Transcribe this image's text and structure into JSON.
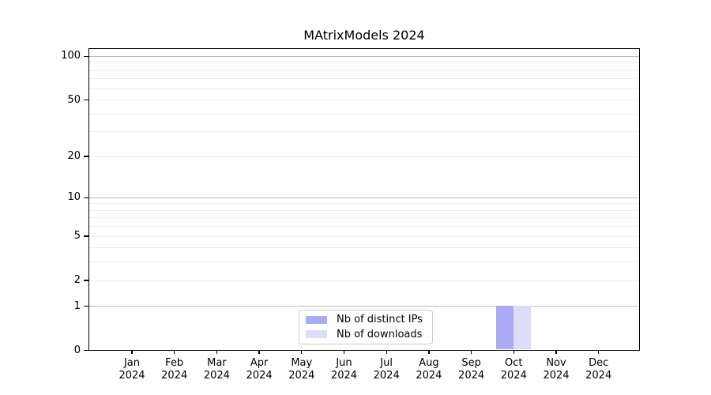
{
  "chart_data": {
    "type": "bar",
    "title": "MAtrixModels 2024",
    "x_tick_months": [
      "Jan",
      "Feb",
      "Mar",
      "Apr",
      "May",
      "Jun",
      "Jul",
      "Aug",
      "Sep",
      "Oct",
      "Nov",
      "Dec"
    ],
    "x_tick_year": "2024",
    "series": [
      {
        "name": "Nb of distinct IPs",
        "color": "#acacf6",
        "values": [
          0,
          0,
          0,
          0,
          0,
          0,
          0,
          0,
          0,
          1,
          0,
          0
        ]
      },
      {
        "name": "Nb of downloads",
        "color": "#ddddf8",
        "values": [
          0,
          0,
          0,
          0,
          0,
          0,
          0,
          0,
          0,
          1,
          0,
          0
        ]
      }
    ],
    "y_scale": "log1p",
    "ylim": [
      0,
      114
    ],
    "y_tick_labels": [
      100,
      50,
      20,
      10,
      5,
      2,
      1,
      0
    ],
    "y_grid_major": [
      1,
      10,
      100
    ],
    "y_grid_minor": [
      2,
      3,
      4,
      5,
      6,
      7,
      8,
      9,
      20,
      30,
      40,
      50,
      60,
      70,
      80,
      90
    ],
    "legend_position": "lower center",
    "grid": true
  },
  "colors": {
    "background": "#ffffff",
    "axis": "#000000",
    "text": "#000000",
    "grid_major": "#bbbbbb",
    "grid_minor": "#ededed",
    "legend_border": "#cccccc",
    "legend_background": "#ffffff"
  }
}
